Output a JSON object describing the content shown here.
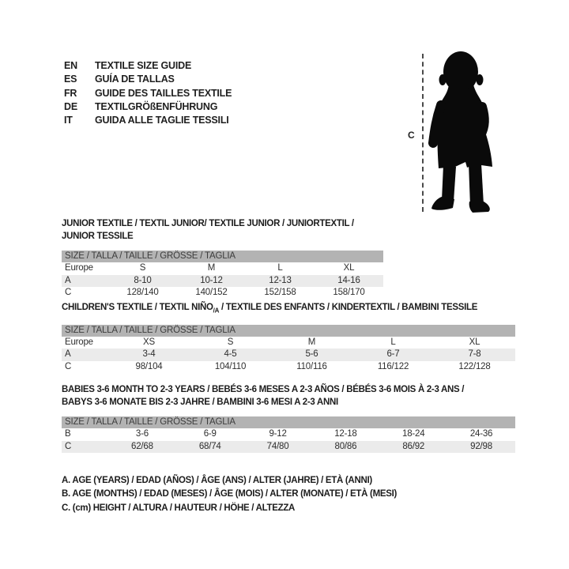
{
  "languages": [
    {
      "code": "EN",
      "text": "TEXTILE SIZE GUIDE"
    },
    {
      "code": "ES",
      "text": "GUÍA DE TALLAS"
    },
    {
      "code": "FR",
      "text": "GUIDE DES TAILLES TEXTILE"
    },
    {
      "code": "DE",
      "text": "TEXTILGRÖßENFÜHRUNG"
    },
    {
      "code": "IT",
      "text": "GUIDA ALLE TAGLIE TESSILI"
    }
  ],
  "figure": {
    "measure_label": "C"
  },
  "tables": [
    {
      "id": "junior",
      "title_lines": [
        [
          {
            "text": "JUNIOR TEXTILE / TEXTIL JUNIOR/ TEXTILE JUNIOR / JUNIORTEXTIL / JUNIOR TESSILE"
          }
        ]
      ],
      "header": "SIZE / TALLA / TAILLE / GRÖSSE / TAGLIA",
      "rows": [
        {
          "label": "Europe",
          "cells": [
            "S",
            "M",
            "L",
            "XL"
          ],
          "shaded": false
        },
        {
          "label": "A",
          "cells": [
            "8-10",
            "10-12",
            "12-13",
            "14-16"
          ],
          "shaded": true
        },
        {
          "label": "C",
          "cells": [
            "128/140",
            "140/152",
            "152/158",
            "158/170"
          ],
          "shaded": false
        }
      ]
    },
    {
      "id": "children",
      "title_lines": [
        [
          {
            "text": "CHILDREN'S TEXTILE / TEXTIL NIÑO"
          },
          {
            "text": "/A",
            "sub": true
          },
          {
            "text": " / TEXTILE DES ENFANTS / KINDERTEXTIL / BAMBINI TESSILE"
          }
        ]
      ],
      "header": "SIZE / TALLA / TAILLE / GRÖSSE / TAGLIA",
      "rows": [
        {
          "label": "Europe",
          "cells": [
            "XS",
            "S",
            "M",
            "L",
            "XL"
          ],
          "shaded": false
        },
        {
          "label": "A",
          "cells": [
            "3-4",
            "4-5",
            "5-6",
            "6-7",
            "7-8"
          ],
          "shaded": true
        },
        {
          "label": "C",
          "cells": [
            "98/104",
            "104/110",
            "110/116",
            "116/122",
            "122/128"
          ],
          "shaded": false
        }
      ]
    },
    {
      "id": "babies",
      "title_lines": [
        [
          {
            "text": "BABIES 3-6 MONTH TO 2-3 YEARS / BEBÉS 3-6 MESES A 2-3 AÑOS / BÉBÉS 3-6 MOIS À 2-3 ANS /"
          }
        ],
        [
          {
            "text": "BABYS 3-6 MONATE BIS 2-3 JAHRE / BAMBINI 3-6 MESI A 2-3 ANNI"
          }
        ]
      ],
      "header": "SIZE / TALLA / TAILLE / GRÖSSE / TAGLIA",
      "rows": [
        {
          "label": "B",
          "cells": [
            "3-6",
            "6-9",
            "9-12",
            "12-18",
            "18-24",
            "24-36"
          ],
          "shaded": false
        },
        {
          "label": "C",
          "cells": [
            "62/68",
            "68/74",
            "74/80",
            "80/86",
            "86/92",
            "92/98"
          ],
          "shaded": true
        }
      ]
    }
  ],
  "legend": [
    "A. AGE (YEARS) / EDAD (AÑOS) / ÂGE (ANS) / ALTER (JAHRE) / ETÀ (ANNI)",
    "B. AGE (MONTHS) / EDAD (MESES) / ÂGE (MOIS) / ALTER (MONATE) / ETÀ (MESI)",
    "C. (cm) HEIGHT / ALTURA / HAUTEUR / HÖHE / ALTEZZA"
  ],
  "colors": {
    "header_bar": "#b3b3b3",
    "row_stripe": "#ebebeb",
    "text": "#1f1f1f",
    "dash_line": "#4a4a4a"
  }
}
